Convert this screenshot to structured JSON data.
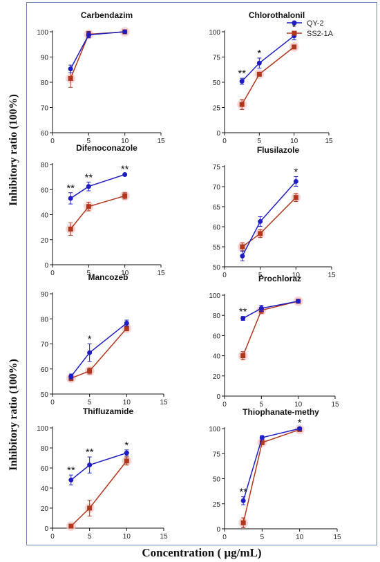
{
  "legend": [
    {
      "name": "QY-2",
      "color": "#1d1dc2",
      "marker": "circle"
    },
    {
      "name": "SS2-1A",
      "color": "#b0361c",
      "marker": "square"
    }
  ],
  "ylabel": "Inhibitory ratio (100%)",
  "xlabel": "Concentration ( µg/mL)",
  "chart_data": [
    {
      "type": "line",
      "title": "Carbendazim",
      "x": [
        2.5,
        5,
        10
      ],
      "xlim": [
        0,
        15
      ],
      "xticks": [
        "0",
        "5",
        "10",
        "15"
      ],
      "ylim": [
        60,
        100
      ],
      "yticks": [
        "60",
        "70",
        "80",
        "90",
        "100"
      ],
      "series": [
        {
          "name": "QY-2",
          "values": [
            85.3,
            98.8,
            100
          ],
          "errors": [
            1.5,
            1.2,
            0.3
          ]
        },
        {
          "name": "SS2-1A",
          "values": [
            81.5,
            99,
            100
          ],
          "errors": [
            3.5,
            1.2,
            0.3
          ]
        }
      ],
      "annotations": [
        "",
        "",
        ""
      ]
    },
    {
      "type": "line",
      "title": "Chlorothalonil",
      "x": [
        2.5,
        5,
        10
      ],
      "xlim": [
        0,
        15
      ],
      "xticks": [
        "0",
        "5",
        "10",
        "15"
      ],
      "ylim": [
        0,
        100
      ],
      "yticks": [
        "0",
        "25",
        "50",
        "75",
        "100"
      ],
      "series": [
        {
          "name": "QY-2",
          "values": [
            51,
            69,
            96
          ],
          "errors": [
            3,
            5,
            4
          ]
        },
        {
          "name": "SS2-1A",
          "values": [
            28,
            58,
            85
          ],
          "errors": [
            5,
            2,
            1.5
          ]
        }
      ],
      "annotations": [
        "**",
        "*",
        "*"
      ]
    },
    {
      "type": "line",
      "title": "Difenoconazole",
      "x": [
        2.5,
        5,
        10
      ],
      "xlim": [
        0,
        15
      ],
      "xticks": [
        "0",
        "5",
        "10",
        "15"
      ],
      "ylim": [
        0,
        80
      ],
      "yticks": [
        "0",
        "20",
        "40",
        "60",
        "80"
      ],
      "series": [
        {
          "name": "QY-2",
          "values": [
            53,
            62.5,
            72
          ],
          "errors": [
            4.5,
            3.5,
            0.5
          ]
        },
        {
          "name": "SS2-1A",
          "values": [
            28.5,
            46.5,
            55
          ],
          "errors": [
            5,
            3.5,
            2.5
          ]
        }
      ],
      "annotations": [
        "**",
        "**",
        "**"
      ]
    },
    {
      "type": "line",
      "title": "Flusilazole",
      "x": [
        2.5,
        5,
        10
      ],
      "xlim": [
        0,
        15
      ],
      "xticks": [
        "0",
        "5",
        "10",
        "15"
      ],
      "ylim": [
        50,
        75
      ],
      "yticks": [
        "50",
        "55",
        "60",
        "65",
        "70",
        "75"
      ],
      "series": [
        {
          "name": "QY-2",
          "values": [
            52.7,
            61.3,
            71.3
          ],
          "errors": [
            1.2,
            1.2,
            1.2
          ]
        },
        {
          "name": "SS2-1A",
          "values": [
            55,
            58.3,
            67.3
          ],
          "errors": [
            1,
            1,
            1
          ]
        }
      ],
      "annotations": [
        "",
        "",
        "*"
      ]
    },
    {
      "type": "line",
      "title": "Mancozeb",
      "x": [
        2.5,
        5,
        10
      ],
      "xlim": [
        0,
        15
      ],
      "xticks": [
        "0",
        "5",
        "10",
        "15"
      ],
      "ylim": [
        50,
        90
      ],
      "yticks": [
        "50",
        "60",
        "70",
        "80",
        "90"
      ],
      "series": [
        {
          "name": "QY-2",
          "values": [
            57,
            66.5,
            78.3
          ],
          "errors": [
            1,
            3.5,
            1.2
          ]
        },
        {
          "name": "SS2-1A",
          "values": [
            56.3,
            59.2,
            76.2
          ],
          "errors": [
            1,
            1.2,
            1
          ]
        }
      ],
      "annotations": [
        "",
        "*",
        ""
      ]
    },
    {
      "type": "line",
      "title": "Prochloraz",
      "x": [
        2.5,
        5,
        10
      ],
      "xlim": [
        0,
        15
      ],
      "xticks": [
        "0",
        "5",
        "10",
        "15"
      ],
      "ylim": [
        0,
        100
      ],
      "yticks": [
        "0",
        "20",
        "40",
        "60",
        "80",
        "100"
      ],
      "series": [
        {
          "name": "QY-2",
          "values": [
            77,
            87,
            94
          ],
          "errors": [
            2,
            3,
            1
          ]
        },
        {
          "name": "SS2-1A",
          "values": [
            40,
            85,
            94
          ],
          "errors": [
            4,
            3,
            1
          ]
        }
      ],
      "annotations": [
        "**",
        "",
        ""
      ]
    },
    {
      "type": "line",
      "title": "Thifluzamide",
      "x": [
        2.5,
        5,
        10
      ],
      "xlim": [
        0,
        15
      ],
      "xticks": [
        "0",
        "5",
        "10",
        "15"
      ],
      "ylim": [
        0,
        100
      ],
      "yticks": [
        "0",
        "20",
        "40",
        "60",
        "80",
        "100"
      ],
      "series": [
        {
          "name": "QY-2",
          "values": [
            48,
            63,
            75
          ],
          "errors": [
            5,
            8,
            3
          ]
        },
        {
          "name": "SS2-1A",
          "values": [
            2,
            20,
            67
          ],
          "errors": [
            1,
            8,
            4
          ]
        }
      ],
      "annotations": [
        "**",
        "**",
        "*"
      ]
    },
    {
      "type": "line",
      "title": "Thiophanate-methy",
      "x": [
        2.5,
        5,
        10
      ],
      "xlim": [
        0,
        15
      ],
      "xticks": [
        "0",
        "5",
        "10",
        "15"
      ],
      "ylim": [
        0,
        100
      ],
      "yticks": [
        "0",
        "25",
        "50",
        "75",
        "100"
      ],
      "series": [
        {
          "name": "QY-2",
          "values": [
            28,
            91,
            100
          ],
          "errors": [
            4,
            2,
            1
          ]
        },
        {
          "name": "SS2-1A",
          "values": [
            6,
            86,
            99
          ],
          "errors": [
            5,
            2,
            1
          ]
        }
      ],
      "annotations": [
        "**",
        "",
        "*"
      ]
    }
  ]
}
